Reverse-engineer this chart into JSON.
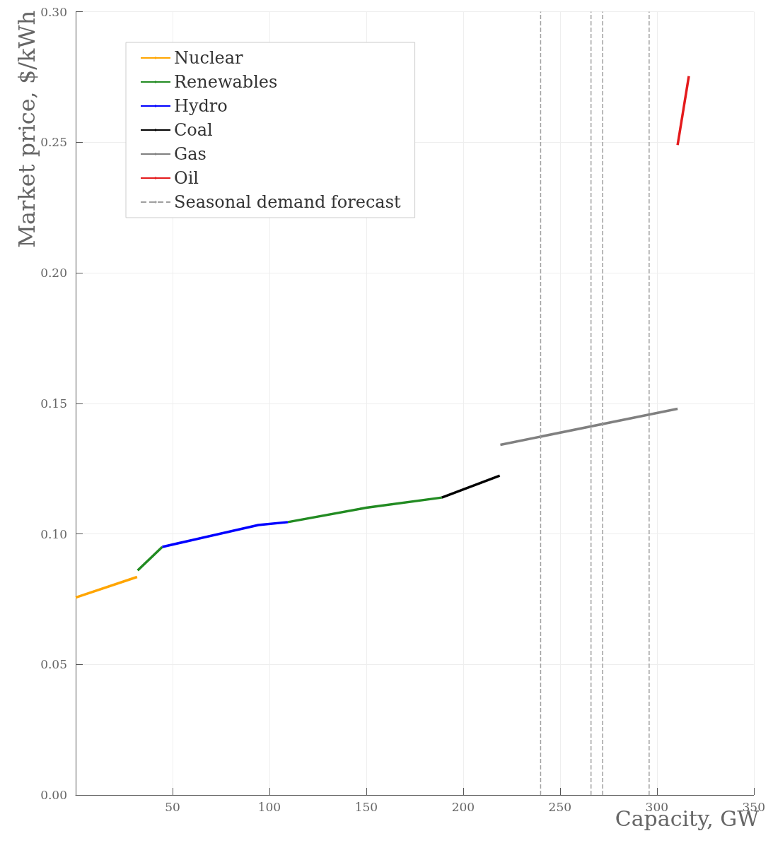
{
  "chart_data": {
    "type": "line",
    "xlabel": "Capacity, GW",
    "ylabel": "Market price, $/kWh",
    "xlim": [
      0,
      350
    ],
    "xticks": [
      50,
      100,
      150,
      200,
      250,
      300,
      350
    ],
    "ylim": [
      0,
      0.3
    ],
    "yticks": [
      {
        "value": 0,
        "label": "0.00"
      },
      0.05,
      {
        "value": 0.1,
        "label": "0.10"
      },
      0.15,
      {
        "value": 0.2,
        "label": "0.20"
      },
      0.25,
      {
        "value": 0.3,
        "label": "0.30"
      }
    ],
    "grid": true,
    "legend": "top left",
    "marker": "none",
    "line_style": "solid",
    "series": [
      {
        "name": "Nuclear",
        "color": "#ffa500",
        "x": [
          0,
          31.7
        ],
        "values": [
          0.0756,
          0.0835
        ]
      },
      {
        "name": "Renewables",
        "color": "#228b22",
        "x": [
          32,
          44.7,
          null,
          109.5,
          150,
          189
        ],
        "values": [
          0.086,
          0.095,
          null,
          0.1045,
          0.11,
          0.1139
        ]
      },
      {
        "name": "Hydro",
        "color": "#0000ff",
        "x": [
          44.7,
          94.3,
          109.5
        ],
        "values": [
          0.095,
          0.1034,
          0.1045
        ]
      },
      {
        "name": "Coal",
        "color": "#000000",
        "x": [
          189,
          218.9
        ],
        "values": [
          0.1139,
          0.1223
        ]
      },
      {
        "name": "Gas",
        "color": "#808080",
        "x": [
          219.2,
          310.7
        ],
        "values": [
          0.1341,
          0.1479
        ]
      },
      {
        "name": "Oil",
        "color": "#e41a1c",
        "x": [
          310.7,
          316.5
        ],
        "values": [
          0.2489,
          0.2753
        ]
      },
      {
        "name": "Seasonal demand forecast",
        "color": "#a0a0a0",
        "line_style": "dashed",
        "x": [
          240,
          240,
          null,
          266,
          266,
          null,
          272,
          272,
          null,
          296,
          296
        ],
        "values": [
          0,
          0.3,
          null,
          0,
          0.3,
          null,
          0,
          0.3,
          null,
          0,
          0.3
        ]
      }
    ]
  }
}
